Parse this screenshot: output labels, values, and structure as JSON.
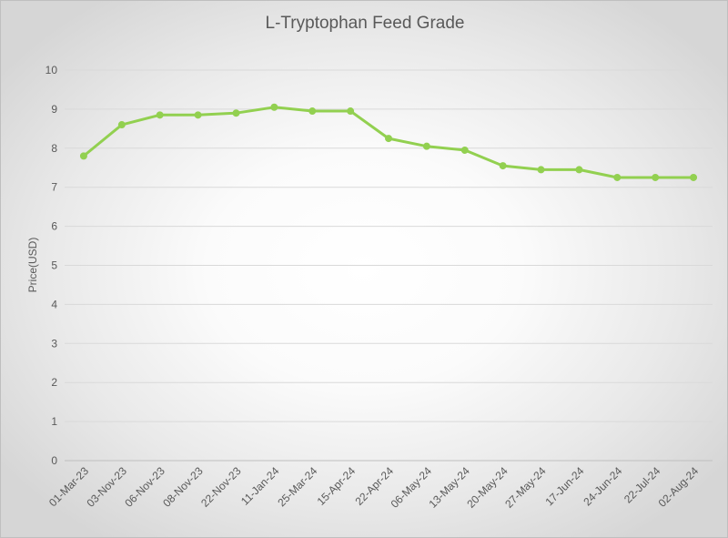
{
  "chart_data": {
    "type": "line",
    "title": "L-Tryptophan Feed Grade",
    "xlabel": "",
    "ylabel": "Price(USD)",
    "ylim": [
      0,
      10
    ],
    "y_ticks": [
      "0",
      "1",
      "2",
      "3",
      "4",
      "5",
      "6",
      "7",
      "8",
      "9",
      "10"
    ],
    "grid": true,
    "legend": "none",
    "categories": [
      "01-Mar-23",
      "03-Nov-23",
      "06-Nov-23",
      "08-Nov-23",
      "22-Nov-23",
      "11-Jan-24",
      "25-Mar-24",
      "15-Apr-24",
      "22-Apr-24",
      "06-May-24",
      "13-May-24",
      "20-May-24",
      "27-May-24",
      "17-Jun-24",
      "24-Jun-24",
      "22-Jul-24",
      "02-Aug-24"
    ],
    "series": [
      {
        "color": "#92d050",
        "values": [
          7.8,
          8.6,
          8.85,
          8.85,
          8.9,
          9.05,
          8.95,
          8.95,
          8.25,
          8.05,
          7.95,
          7.55,
          7.45,
          7.45,
          7.25,
          7.25,
          7.25
        ]
      }
    ]
  }
}
